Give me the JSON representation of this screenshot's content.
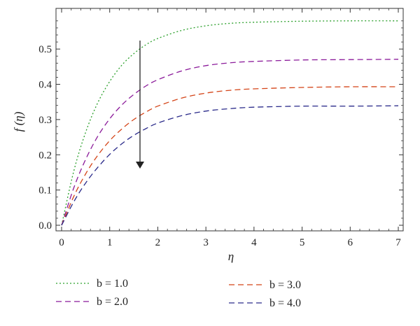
{
  "chart_data": {
    "type": "line",
    "xlabel": "η",
    "ylabel": "f (η)",
    "xlim": [
      0,
      7
    ],
    "ylim": [
      0,
      0.58
    ],
    "x_ticks": [
      "0",
      "1",
      "2",
      "3",
      "4",
      "5",
      "6",
      "7"
    ],
    "y_ticks": [
      "0.0",
      "0.1",
      "0.2",
      "0.3",
      "0.4",
      "0.5"
    ],
    "grid": false,
    "legend_position": "bottom",
    "annotation": "arrow pointing down at η ≈ 1.65, indicating f(η) decreases as b increases",
    "series": [
      {
        "name": "b = 1.0",
        "color": "#2ca02c",
        "style": "dotted",
        "x": [
          0,
          0.25,
          0.5,
          0.75,
          1.0,
          1.25,
          1.5,
          1.75,
          2.0,
          2.5,
          3.0,
          3.5,
          4.0,
          5.0,
          6.0,
          7.0
        ],
        "y": [
          0,
          0.152,
          0.264,
          0.347,
          0.408,
          0.454,
          0.487,
          0.512,
          0.53,
          0.553,
          0.566,
          0.573,
          0.576,
          0.579,
          0.58,
          0.58
        ]
      },
      {
        "name": "b = 2.0",
        "color": "#8b1a9a",
        "style": "dashed",
        "x": [
          0,
          0.25,
          0.5,
          0.75,
          1.0,
          1.25,
          1.5,
          1.75,
          2.0,
          2.5,
          3.0,
          3.5,
          4.0,
          5.0,
          6.0,
          7.0
        ],
        "y": [
          0,
          0.105,
          0.187,
          0.252,
          0.302,
          0.341,
          0.371,
          0.395,
          0.413,
          0.438,
          0.453,
          0.461,
          0.465,
          0.469,
          0.47,
          0.471
        ]
      },
      {
        "name": "b = 3.0",
        "color": "#d44418",
        "style": "dashed",
        "x": [
          0,
          0.25,
          0.5,
          0.75,
          1.0,
          1.25,
          1.5,
          1.75,
          2.0,
          2.5,
          3.0,
          3.5,
          4.0,
          5.0,
          6.0,
          7.0
        ],
        "y": [
          0,
          0.081,
          0.146,
          0.198,
          0.24,
          0.273,
          0.3,
          0.321,
          0.338,
          0.361,
          0.375,
          0.383,
          0.387,
          0.391,
          0.393,
          0.393
        ]
      },
      {
        "name": "b = 4.0",
        "color": "#2a2a8a",
        "style": "dashed",
        "x": [
          0,
          0.25,
          0.5,
          0.75,
          1.0,
          1.25,
          1.5,
          1.75,
          2.0,
          2.5,
          3.0,
          3.5,
          4.0,
          5.0,
          6.0,
          7.0
        ],
        "y": [
          0,
          0.066,
          0.12,
          0.164,
          0.201,
          0.231,
          0.255,
          0.274,
          0.29,
          0.311,
          0.324,
          0.331,
          0.335,
          0.338,
          0.338,
          0.339
        ]
      }
    ]
  }
}
